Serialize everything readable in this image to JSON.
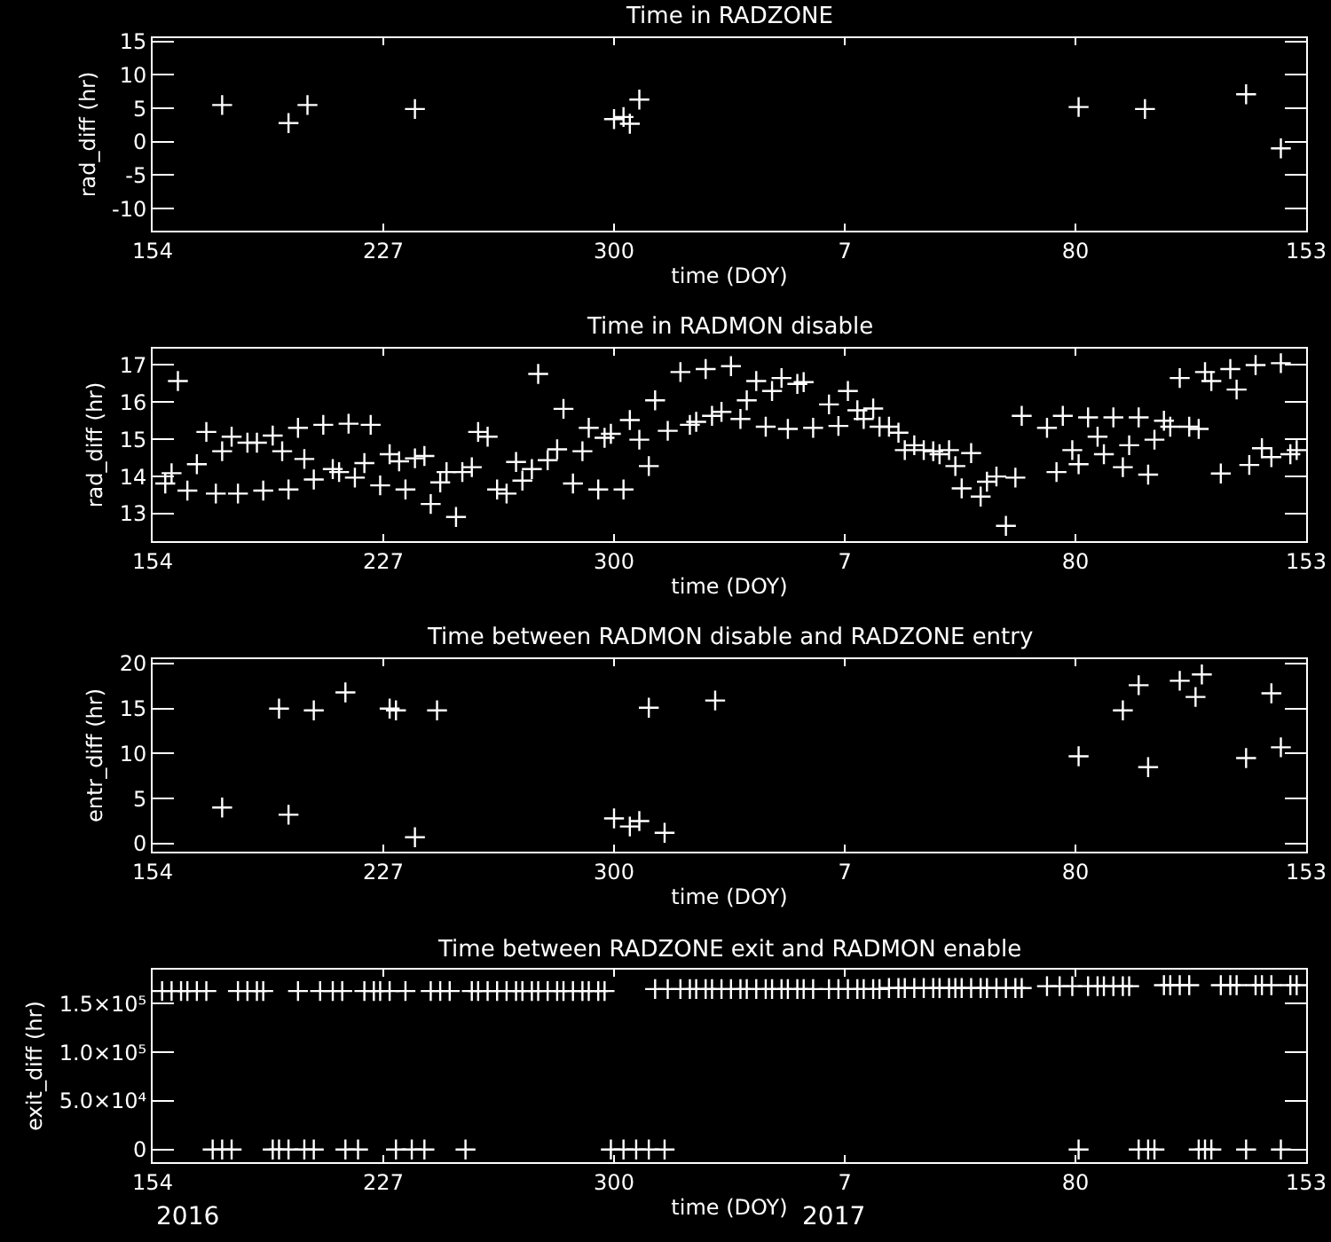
{
  "chart_data": [
    {
      "type": "scatter",
      "title": "Time in RADZONE",
      "xlabel": "time (DOY)",
      "ylabel": "rad_diff (hr)",
      "marker": "cross",
      "x": [
        "2016-06-24",
        "2016-07-15",
        "2016-07-21",
        "2016-08-24",
        "2016-10-26",
        "2016-10-29",
        "2016-10-31",
        "2016-11-03",
        "2017-03-22",
        "2017-04-12",
        "2017-05-14",
        "2017-05-25"
      ],
      "series": [
        {
          "color": "#ffffff",
          "values": [
            5.5,
            2.8,
            5.5,
            4.9,
            3.4,
            3.7,
            2.7,
            6.3,
            5.2,
            4.9,
            7.1,
            -1.0
          ]
        }
      ],
      "xlim": [
        "2016-06-02",
        "2017-06-02"
      ],
      "xticks": [
        {
          "value": "2016-06-02",
          "label": "154"
        },
        {
          "value": "2016-08-14",
          "label": "227"
        },
        {
          "value": "2016-10-26",
          "label": "300"
        },
        {
          "value": "2017-01-07",
          "label": "7"
        },
        {
          "value": "2017-03-21",
          "label": "80"
        },
        {
          "value": "2017-06-02",
          "label": "153"
        }
      ],
      "ylim": [
        -13.3,
        15.5
      ],
      "yticks": [
        -10,
        -5,
        0,
        5,
        10,
        15
      ]
    },
    {
      "type": "scatter",
      "title": "Time in RADMON disable",
      "xlabel": "time (DOY)",
      "ylabel": "rad_diff (hr)",
      "marker": "cross",
      "x": [
        "2016-06-06",
        "2016-06-08",
        "2016-06-10",
        "2016-06-13",
        "2016-06-16",
        "2016-06-19",
        "2016-06-22",
        "2016-06-24",
        "2016-06-27",
        "2016-06-29",
        "2016-07-02",
        "2016-07-05",
        "2016-07-07",
        "2016-07-10",
        "2016-07-13",
        "2016-07-15",
        "2016-07-18",
        "2016-07-20",
        "2016-07-23",
        "2016-07-26",
        "2016-07-29",
        "2016-07-31",
        "2016-08-03",
        "2016-08-05",
        "2016-08-08",
        "2016-08-10",
        "2016-08-13",
        "2016-08-16",
        "2016-08-19",
        "2016-08-21",
        "2016-08-24",
        "2016-08-27",
        "2016-08-29",
        "2016-09-01",
        "2016-09-03",
        "2016-09-06",
        "2016-09-08",
        "2016-09-11",
        "2016-09-13",
        "2016-09-16",
        "2016-09-19",
        "2016-09-22",
        "2016-09-25",
        "2016-09-27",
        "2016-09-30",
        "2016-10-02",
        "2016-10-05",
        "2016-10-08",
        "2016-10-10",
        "2016-10-13",
        "2016-10-16",
        "2016-10-18",
        "2016-10-21",
        "2016-10-23",
        "2016-10-25",
        "2016-10-29",
        "2016-10-31",
        "2016-11-03",
        "2016-11-06",
        "2016-11-08",
        "2016-11-12",
        "2016-11-16",
        "2016-11-19",
        "2016-11-21",
        "2016-11-24",
        "2016-11-26",
        "2016-11-29",
        "2016-12-02",
        "2016-12-05",
        "2016-12-07",
        "2016-12-10",
        "2016-12-13",
        "2016-12-15",
        "2016-12-18",
        "2016-12-20",
        "2016-12-23",
        "2016-12-25",
        "2016-12-28",
        "2017-01-02",
        "2017-01-05",
        "2017-01-08",
        "2017-01-11",
        "2017-01-13",
        "2017-01-16",
        "2017-01-18",
        "2017-01-21",
        "2017-01-24",
        "2017-01-26",
        "2017-01-29",
        "2017-02-01",
        "2017-02-04",
        "2017-02-06",
        "2017-02-09",
        "2017-02-11",
        "2017-02-13",
        "2017-02-16",
        "2017-02-19",
        "2017-02-21",
        "2017-02-24",
        "2017-02-27",
        "2017-03-02",
        "2017-03-04",
        "2017-03-12",
        "2017-03-15",
        "2017-03-17",
        "2017-03-20",
        "2017-03-22",
        "2017-03-25",
        "2017-03-28",
        "2017-03-30",
        "2017-04-02",
        "2017-04-05",
        "2017-04-07",
        "2017-04-10",
        "2017-04-13",
        "2017-04-15",
        "2017-04-18",
        "2017-04-20",
        "2017-04-23",
        "2017-04-26",
        "2017-04-29",
        "2017-05-01",
        "2017-05-03",
        "2017-05-06",
        "2017-05-09",
        "2017-05-11",
        "2017-05-15",
        "2017-05-17",
        "2017-05-19",
        "2017-05-22",
        "2017-05-25",
        "2017-05-28",
        "2017-05-30"
      ],
      "series": [
        {
          "color": "#ffffff",
          "values": [
            13.81,
            14.09,
            16.57,
            13.62,
            14.33,
            15.2,
            13.54,
            14.68,
            15.07,
            13.54,
            14.91,
            14.91,
            13.62,
            15.1,
            14.68,
            13.65,
            15.31,
            14.47,
            13.92,
            15.39,
            14.2,
            14.12,
            15.42,
            13.97,
            14.36,
            15.39,
            13.76,
            14.6,
            14.41,
            13.65,
            14.49,
            14.55,
            13.26,
            13.84,
            14.12,
            12.91,
            14.12,
            14.25,
            15.2,
            15.07,
            13.65,
            13.54,
            14.39,
            13.89,
            14.2,
            16.76,
            14.44,
            14.73,
            15.82,
            13.81,
            14.68,
            15.31,
            13.65,
            15.04,
            15.15,
            13.65,
            15.52,
            14.99,
            14.28,
            16.05,
            15.23,
            16.81,
            15.39,
            15.47,
            16.89,
            15.63,
            15.74,
            16.97,
            15.55,
            16.05,
            16.57,
            15.34,
            16.3,
            16.65,
            15.28,
            16.49,
            16.54,
            15.31,
            15.94,
            15.36,
            16.3,
            15.78,
            15.55,
            15.83,
            15.34,
            15.34,
            15.18,
            14.71,
            14.84,
            14.71,
            14.68,
            14.6,
            14.71,
            14.28,
            13.68,
            14.63,
            13.46,
            13.86,
            14.0,
            12.67,
            13.97,
            15.63,
            15.31,
            14.12,
            15.63,
            14.71,
            14.33,
            15.59,
            15.07,
            14.6,
            15.59,
            14.25,
            14.84,
            15.59,
            14.05,
            14.99,
            15.5,
            15.34,
            16.65,
            15.34,
            15.28,
            16.81,
            16.57,
            14.08,
            16.89,
            16.34,
            14.31,
            17.0,
            14.76,
            14.52,
            17.05,
            14.6,
            14.71
          ]
        }
      ],
      "xlim": [
        "2016-06-02",
        "2017-06-02"
      ],
      "xticks": [
        {
          "value": "2016-06-02",
          "label": "154"
        },
        {
          "value": "2016-08-14",
          "label": "227"
        },
        {
          "value": "2016-10-26",
          "label": "300"
        },
        {
          "value": "2017-01-07",
          "label": "7"
        },
        {
          "value": "2017-03-21",
          "label": "80"
        },
        {
          "value": "2017-06-02",
          "label": "153"
        }
      ],
      "ylim": [
        12.26,
        17.44
      ],
      "yticks": [
        13,
        14,
        15,
        16,
        17
      ]
    },
    {
      "type": "scatter",
      "title": "Time between RADMON disable and RADZONE entry",
      "xlabel": "time (DOY)",
      "ylabel": "entr_diff (hr)",
      "marker": "cross",
      "x": [
        "2016-06-24",
        "2016-07-12",
        "2016-07-15",
        "2016-07-23",
        "2016-08-02",
        "2016-08-16",
        "2016-08-18",
        "2016-08-24",
        "2016-08-31",
        "2016-10-26",
        "2016-10-31",
        "2016-11-03",
        "2016-11-06",
        "2016-11-11",
        "2016-11-27",
        "2017-03-22",
        "2017-04-05",
        "2017-04-10",
        "2017-04-13",
        "2017-04-23",
        "2017-04-28",
        "2017-04-30",
        "2017-05-14",
        "2017-05-22",
        "2017-05-25"
      ],
      "series": [
        {
          "color": "#ffffff",
          "values": [
            4.0,
            15.0,
            3.2,
            14.8,
            16.8,
            15.0,
            14.8,
            0.7,
            14.8,
            2.8,
            1.9,
            2.5,
            15.1,
            1.2,
            15.9,
            9.7,
            14.8,
            17.6,
            8.5,
            18.1,
            16.3,
            18.8,
            9.5,
            16.7,
            10.7
          ]
        }
      ],
      "xlim": [
        "2016-06-02",
        "2017-06-02"
      ],
      "xticks": [
        {
          "value": "2016-06-02",
          "label": "154"
        },
        {
          "value": "2016-08-14",
          "label": "227"
        },
        {
          "value": "2016-10-26",
          "label": "300"
        },
        {
          "value": "2017-01-07",
          "label": "7"
        },
        {
          "value": "2017-03-21",
          "label": "80"
        },
        {
          "value": "2017-06-02",
          "label": "153"
        }
      ],
      "ylim": [
        -0.9,
        20.5
      ],
      "yticks": [
        0,
        5,
        10,
        15,
        20
      ]
    },
    {
      "type": "scatter",
      "title": "Time between RADZONE exit and RADMON enable",
      "xlabel": "time (DOY)",
      "ylabel": "exit_diff (hr)",
      "marker": "cross",
      "x": [
        "2016-06-05",
        "2016-06-08",
        "2016-06-11",
        "2016-06-13",
        "2016-06-16",
        "2016-06-19",
        "2016-06-21",
        "2016-06-24",
        "2016-06-27",
        "2016-06-29",
        "2016-07-02",
        "2016-07-05",
        "2016-07-07",
        "2016-07-10",
        "2016-07-12",
        "2016-07-15",
        "2016-07-18",
        "2016-07-20",
        "2016-07-23",
        "2016-07-25",
        "2016-07-29",
        "2016-08-01",
        "2016-08-02",
        "2016-08-06",
        "2016-08-08",
        "2016-08-11",
        "2016-08-13",
        "2016-08-16",
        "2016-08-18",
        "2016-08-21",
        "2016-08-23",
        "2016-08-27",
        "2016-08-29",
        "2016-09-01",
        "2016-09-04",
        "2016-09-09",
        "2016-09-11",
        "2016-09-13",
        "2016-09-16",
        "2016-09-19",
        "2016-09-22",
        "2016-09-25",
        "2016-09-27",
        "2016-09-30",
        "2016-10-02",
        "2016-10-05",
        "2016-10-08",
        "2016-10-10",
        "2016-10-13",
        "2016-10-16",
        "2016-10-18",
        "2016-10-21",
        "2016-10-23",
        "2016-10-25",
        "2016-10-29",
        "2016-11-02",
        "2016-11-06",
        "2016-11-08",
        "2016-11-11",
        "2016-11-12",
        "2016-11-16",
        "2016-11-19",
        "2016-11-21",
        "2016-11-24",
        "2016-11-26",
        "2016-11-29",
        "2016-12-02",
        "2016-12-05",
        "2016-12-07",
        "2016-12-10",
        "2016-12-13",
        "2016-12-15",
        "2016-12-18",
        "2016-12-20",
        "2016-12-23",
        "2016-12-25",
        "2016-12-28",
        "2017-01-02",
        "2017-01-05",
        "2017-01-08",
        "2017-01-11",
        "2017-01-13",
        "2017-01-16",
        "2017-01-18",
        "2017-01-21",
        "2017-01-24",
        "2017-01-26",
        "2017-01-29",
        "2017-02-01",
        "2017-02-04",
        "2017-02-06",
        "2017-02-09",
        "2017-02-11",
        "2017-02-13",
        "2017-02-16",
        "2017-02-19",
        "2017-02-21",
        "2017-02-24",
        "2017-02-27",
        "2017-03-02",
        "2017-03-04",
        "2017-03-12",
        "2017-03-16",
        "2017-03-20",
        "2017-03-22",
        "2017-03-25",
        "2017-03-28",
        "2017-03-30",
        "2017-04-02",
        "2017-04-05",
        "2017-04-07",
        "2017-04-10",
        "2017-04-13",
        "2017-04-15",
        "2017-04-18",
        "2017-04-20",
        "2017-04-23",
        "2017-04-26",
        "2017-04-29",
        "2017-05-01",
        "2017-05-03",
        "2017-05-06",
        "2017-05-09",
        "2017-05-11",
        "2017-05-14",
        "2017-05-17",
        "2017-05-19",
        "2017-05-22",
        "2017-05-25",
        "2017-05-28",
        "2017-05-30"
      ],
      "series": [
        {
          "color": "#ffffff",
          "values": [
            163000,
            163000,
            163000,
            163000,
            163000,
            163000,
            0,
            0,
            0,
            163000,
            163000,
            163000,
            163000,
            0,
            0,
            0,
            163000,
            0,
            0,
            163000,
            163000,
            163000,
            0,
            0,
            163000,
            163000,
            163000,
            163000,
            0,
            163000,
            0,
            0,
            163000,
            163000,
            163000,
            0,
            163000,
            163000,
            163000,
            163000,
            163000,
            163000,
            163000,
            163000,
            163000,
            163000,
            163000,
            163000,
            163000,
            163000,
            163000,
            163000,
            163000,
            0,
            0,
            0,
            0,
            165000,
            0,
            165000,
            165000,
            165000,
            165000,
            165000,
            165000,
            165000,
            165000,
            165000,
            165000,
            165000,
            165000,
            165000,
            165000,
            165000,
            165000,
            165000,
            165000,
            165000,
            165000,
            165000,
            165000,
            165000,
            165000,
            165000,
            166000,
            166000,
            166000,
            166000,
            166000,
            166000,
            166000,
            166000,
            166000,
            166000,
            166000,
            166000,
            166000,
            166000,
            166000,
            166000,
            166000,
            168000,
            168000,
            168000,
            0,
            168000,
            168000,
            168000,
            168000,
            168000,
            168000,
            0,
            0,
            0,
            169000,
            169000,
            169000,
            169000,
            0,
            0,
            0,
            169000,
            169000,
            169000,
            0,
            169000,
            169000,
            169000,
            0,
            169000,
            169000
          ]
        }
      ],
      "xlim": [
        "2016-06-02",
        "2017-06-02"
      ],
      "xticks": [
        {
          "value": "2016-06-02",
          "label": "154"
        },
        {
          "value": "2016-08-14",
          "label": "227"
        },
        {
          "value": "2016-10-26",
          "label": "300"
        },
        {
          "value": "2017-01-07",
          "label": "7"
        },
        {
          "value": "2017-03-21",
          "label": "80"
        },
        {
          "value": "2017-06-02",
          "label": "153"
        }
      ],
      "ylim": [
        -13000,
        185000
      ],
      "yticks": [
        0,
        {
          "value": 50000,
          "label": "5.0×10⁴"
        },
        {
          "value": 100000,
          "label": "1.0×10⁵"
        },
        {
          "value": 150000,
          "label": "1.5×10⁵"
        }
      ],
      "annotations": [
        "2016",
        "2017"
      ]
    }
  ]
}
